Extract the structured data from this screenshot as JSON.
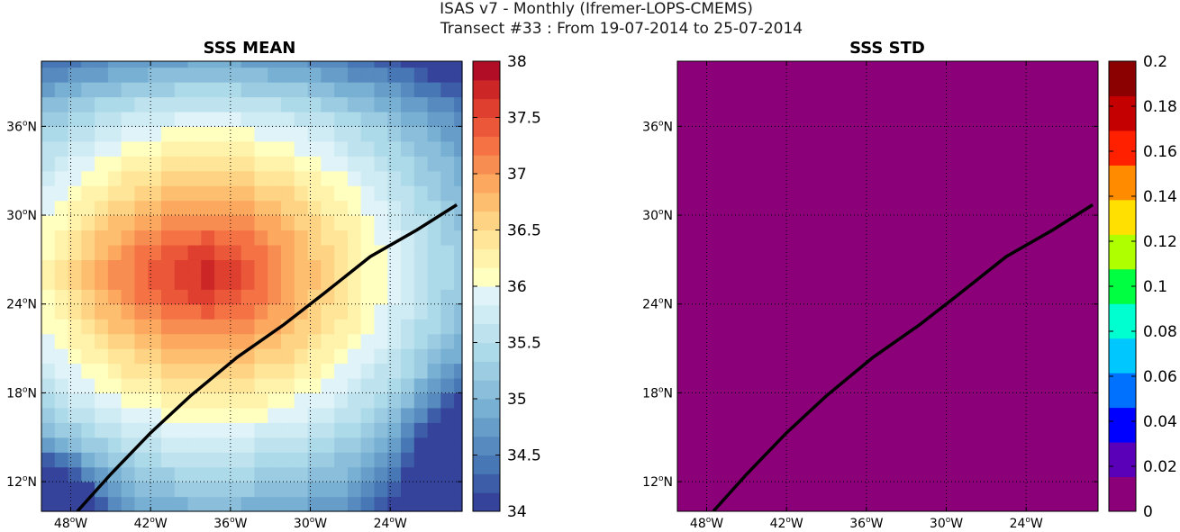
{
  "figure": {
    "title_line1": "ISAS v7 - Monthly (Ifremer-LOPS-CMEMS)",
    "title_line2": "Transect #33 : From 19-07-2014 to 25-07-2014"
  },
  "chart_data": [
    {
      "type": "heatmap",
      "title": "SSS MEAN",
      "lon_range": [
        -50.2,
        -18.6
      ],
      "lat_range": [
        10.0,
        40.4
      ],
      "x_ticks": [
        -48,
        -42,
        -36,
        -30,
        -24
      ],
      "y_ticks": [
        12,
        18,
        24,
        30,
        36
      ],
      "x_tick_labels": [
        "48°W",
        "42°W",
        "36°W",
        "30°W",
        "24°W"
      ],
      "y_tick_labels": [
        "12°N",
        "18°N",
        "24°N",
        "30°N",
        "36°N"
      ],
      "grid": true,
      "colorbar": {
        "range": [
          34,
          38
        ],
        "ticks": [
          34,
          34.5,
          35,
          35.5,
          36,
          36.5,
          37,
          37.5,
          38
        ],
        "tick_labels": [
          "34",
          "34.5",
          "35",
          "35.5",
          "36",
          "36.5",
          "37",
          "37.5",
          "38"
        ],
        "colormap": "RdYlBu_r",
        "levels": 24
      },
      "field_description": "Salinity maximum (~37.6-37.8) centred near 26N 38W; 37.2-37.5 band between 20N and 30N; 36.3-36.8 toward north and south; fresher water (34.1-35.9) along the south-west and south-east corners.",
      "transect": {
        "lon": [
          -47.5,
          -45,
          -42,
          -39,
          -35.5,
          -32,
          -29,
          -25.5,
          -22,
          -19
        ],
        "lat": [
          10,
          12.5,
          15.3,
          17.8,
          20.4,
          22.6,
          24.7,
          27.2,
          29.0,
          30.7
        ]
      }
    },
    {
      "type": "heatmap",
      "title": "SSS STD",
      "lon_range": [
        -50.2,
        -18.6
      ],
      "lat_range": [
        10.0,
        40.4
      ],
      "x_ticks": [
        -48,
        -42,
        -36,
        -30,
        -24
      ],
      "y_ticks": [
        12,
        18,
        24,
        30,
        36
      ],
      "x_tick_labels": [
        "48°W",
        "42°W",
        "36°W",
        "30°W",
        "24°W"
      ],
      "y_tick_labels": [
        "12°N",
        "18°N",
        "24°N",
        "30°N",
        "36°N"
      ],
      "grid": true,
      "uniform_value": 0,
      "fill_color": "#8b0079",
      "colorbar": {
        "range": [
          0,
          0.2
        ],
        "ticks": [
          0,
          0.02,
          0.04,
          0.06,
          0.08,
          0.1,
          0.12,
          0.14,
          0.16,
          0.18,
          0.2
        ],
        "tick_labels": [
          "0",
          "0.02",
          "0.04",
          "0.06",
          "0.08",
          "0.1",
          "0.12",
          "0.14",
          "0.16",
          "0.18",
          "0.2"
        ],
        "colormap": "jet_with_purple_bottom",
        "colors": [
          "#8b0079",
          "#5a00b8",
          "#0000ff",
          "#0070ff",
          "#00c8ff",
          "#00ffd0",
          "#00ff40",
          "#b0ff00",
          "#ffe000",
          "#ff8c00",
          "#ff2000",
          "#c40000",
          "#8b0000"
        ]
      },
      "transect": {
        "lon": [
          -47.5,
          -45,
          -42,
          -39,
          -35.5,
          -32,
          -29,
          -25.5,
          -22,
          -19
        ],
        "lat": [
          10,
          12.5,
          15.3,
          17.8,
          20.4,
          22.6,
          24.7,
          27.2,
          29.0,
          30.7
        ]
      }
    }
  ]
}
